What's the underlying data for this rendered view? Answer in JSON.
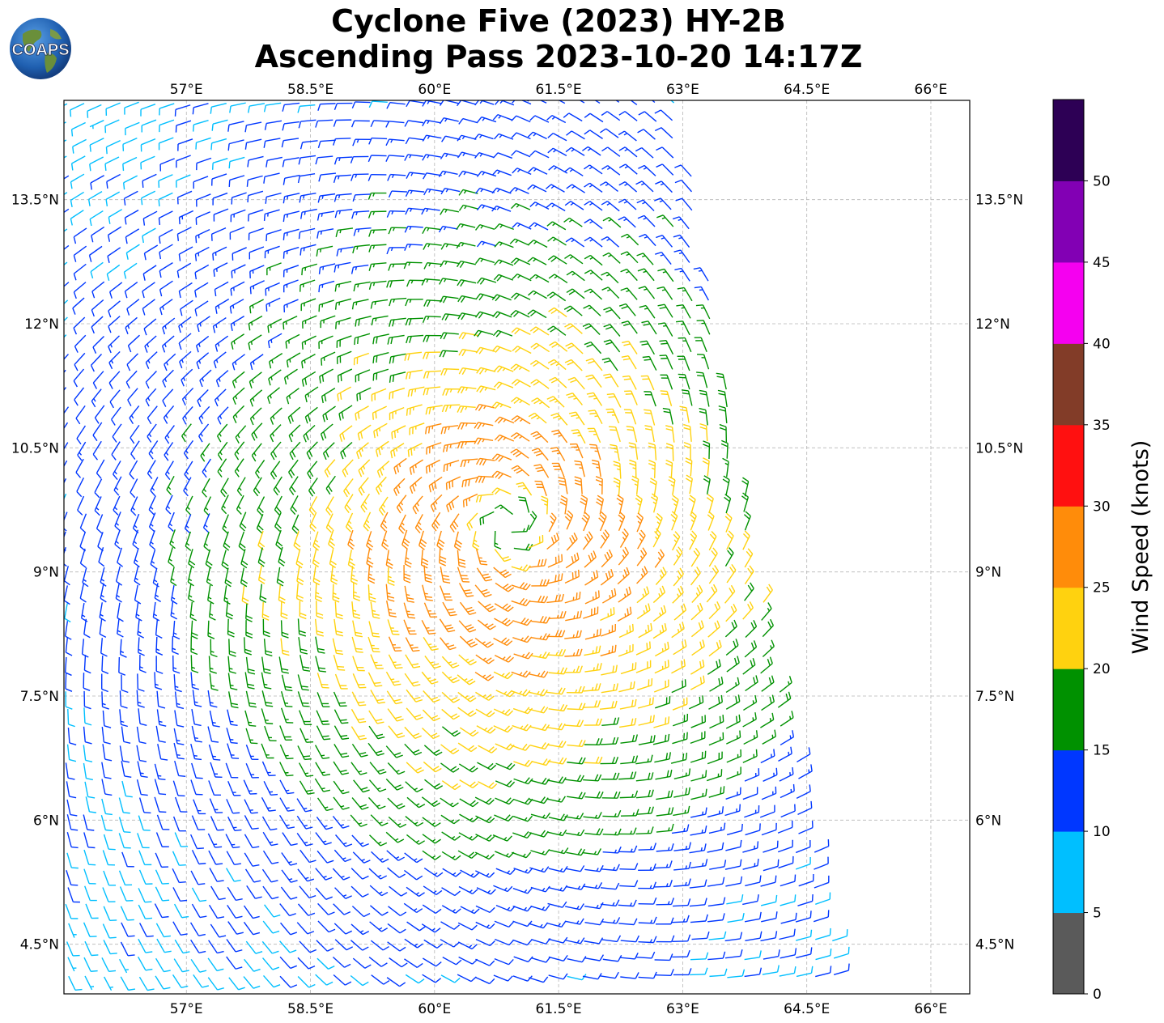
{
  "title": {
    "line1": "Cyclone Five (2023) HY-2B",
    "line2": "Ascending Pass 2023-10-20 14:17Z"
  },
  "logo": {
    "text": "COAPS",
    "icon": "globe-logo-icon"
  },
  "map": {
    "lon_ticks": [
      {
        "value": 57,
        "label": "57°E"
      },
      {
        "value": 58.5,
        "label": "58.5°E"
      },
      {
        "value": 60,
        "label": "60°E"
      },
      {
        "value": 61.5,
        "label": "61.5°E"
      },
      {
        "value": 63,
        "label": "63°E"
      },
      {
        "value": 64.5,
        "label": "64.5°E"
      },
      {
        "value": 66,
        "label": "66°E"
      }
    ],
    "lat_ticks": [
      {
        "value": 13.5,
        "label": "13.5°N"
      },
      {
        "value": 12,
        "label": "12°N"
      },
      {
        "value": 10.5,
        "label": "10.5°N"
      },
      {
        "value": 9,
        "label": "9°N"
      },
      {
        "value": 7.5,
        "label": "7.5°N"
      },
      {
        "value": 6,
        "label": "6°N"
      },
      {
        "value": 4.5,
        "label": "4.5°N"
      }
    ],
    "lon_range": [
      55.52,
      66.47
    ],
    "lat_range": [
      3.9,
      14.7
    ],
    "gridlines": true,
    "storm_center": {
      "lon": 60.9,
      "lat": 9.55
    },
    "swath_east_edge": [
      {
        "lat": 14.7,
        "lon": 62.95
      },
      {
        "lat": 9.0,
        "lon": 63.9
      },
      {
        "lat": 3.9,
        "lon": 65.0
      }
    ]
  },
  "colorbar": {
    "title": "Wind Speed (knots)",
    "tick_values": [
      0,
      5,
      10,
      15,
      20,
      25,
      30,
      35,
      40,
      45,
      50
    ],
    "tick_labels": [
      "0",
      "5",
      "10",
      "15",
      "20",
      "25",
      "30",
      "35",
      "40",
      "45",
      "50"
    ],
    "max": 55,
    "bins": [
      {
        "min": 0,
        "max": 5,
        "color": "#5a5a5a"
      },
      {
        "min": 5,
        "max": 10,
        "color": "#00bfff"
      },
      {
        "min": 10,
        "max": 15,
        "color": "#0037ff"
      },
      {
        "min": 15,
        "max": 20,
        "color": "#009100"
      },
      {
        "min": 20,
        "max": 25,
        "color": "#ffd20f"
      },
      {
        "min": 25,
        "max": 30,
        "color": "#ff8c0a"
      },
      {
        "min": 30,
        "max": 35,
        "color": "#ff1010"
      },
      {
        "min": 35,
        "max": 40,
        "color": "#823c28"
      },
      {
        "min": 40,
        "max": 45,
        "color": "#f500f0"
      },
      {
        "min": 45,
        "max": 50,
        "color": "#8200b4"
      },
      {
        "min": 50,
        "max": 55,
        "color": "#2d0055"
      }
    ]
  }
}
